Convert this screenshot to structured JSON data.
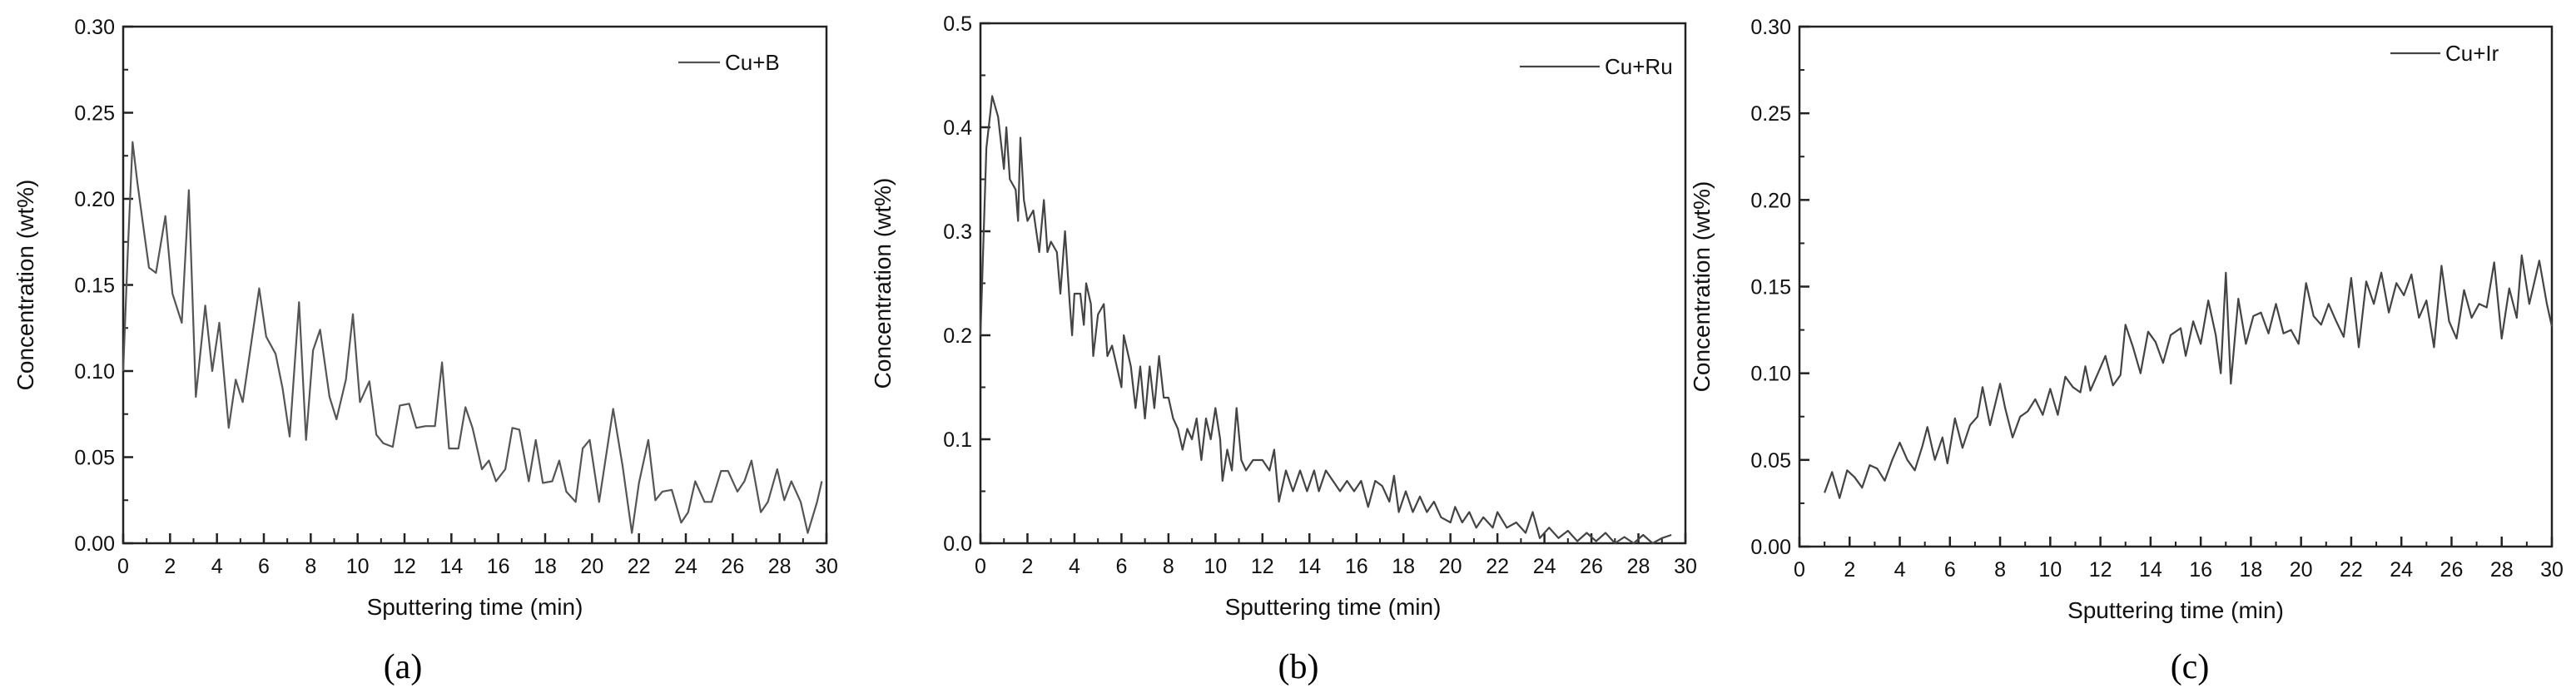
{
  "chart_data": [
    {
      "type": "line",
      "panel_caption": "(a)",
      "xlabel": "Sputtering time (min)",
      "ylabel": "Concentration (wt%)",
      "xlim": [
        0,
        30
      ],
      "ylim": [
        0,
        0.3
      ],
      "xtick_labels": [
        "0",
        "2",
        "4",
        "6",
        "8",
        "10",
        "12",
        "14",
        "16",
        "18",
        "20",
        "22",
        "24",
        "26",
        "28",
        "30"
      ],
      "ytick_labels": [
        "0.00",
        "0.05",
        "0.10",
        "0.15",
        "0.20",
        "0.25",
        "0.30"
      ],
      "grid": false,
      "legend_position": "top-right",
      "line_color": "#555555",
      "series": [
        {
          "name": "Cu+B",
          "x": [
            0,
            0.2,
            0.4,
            0.6,
            0.9,
            1.1,
            1.4,
            1.8,
            2.1,
            2.5,
            2.8,
            3.1,
            3.5,
            3.8,
            4.1,
            4.5,
            4.8,
            5.1,
            5.8,
            6.1,
            6.5,
            6.8,
            7.1,
            7.5,
            7.8,
            8.1,
            8.4,
            8.8,
            9.1,
            9.5,
            9.8,
            10.1,
            10.5,
            10.8,
            11.1,
            11.5,
            11.8,
            12.2,
            12.5,
            12.9,
            13.3,
            13.6,
            13.9,
            14.3,
            14.6,
            14.9,
            15.3,
            15.6,
            15.9,
            16.3,
            16.6,
            16.9,
            17.3,
            17.6,
            17.9,
            18.3,
            18.6,
            18.9,
            19.3,
            19.6,
            19.9,
            20.3,
            20.9,
            21.3,
            21.7,
            22.0,
            22.4,
            22.7,
            23.0,
            23.4,
            23.8,
            24.1,
            24.4,
            24.8,
            25.1,
            25.5,
            25.8,
            26.2,
            26.5,
            26.8,
            27.2,
            27.5,
            27.9,
            28.2,
            28.5,
            28.9,
            29.2,
            29.6,
            29.8
          ],
          "y": [
            0.1,
            0.17,
            0.233,
            0.21,
            0.18,
            0.16,
            0.157,
            0.19,
            0.145,
            0.128,
            0.205,
            0.085,
            0.138,
            0.1,
            0.128,
            0.067,
            0.095,
            0.082,
            0.148,
            0.12,
            0.11,
            0.09,
            0.062,
            0.14,
            0.06,
            0.112,
            0.124,
            0.085,
            0.072,
            0.095,
            0.133,
            0.082,
            0.094,
            0.063,
            0.058,
            0.056,
            0.08,
            0.081,
            0.067,
            0.068,
            0.068,
            0.105,
            0.055,
            0.055,
            0.079,
            0.067,
            0.043,
            0.048,
            0.036,
            0.043,
            0.067,
            0.066,
            0.036,
            0.06,
            0.035,
            0.036,
            0.048,
            0.03,
            0.024,
            0.055,
            0.06,
            0.024,
            0.078,
            0.045,
            0.006,
            0.035,
            0.06,
            0.025,
            0.03,
            0.031,
            0.012,
            0.018,
            0.036,
            0.024,
            0.024,
            0.042,
            0.042,
            0.03,
            0.036,
            0.048,
            0.018,
            0.024,
            0.043,
            0.025,
            0.036,
            0.024,
            0.006,
            0.024,
            0.036
          ]
        }
      ]
    },
    {
      "type": "line",
      "panel_caption": "(b)",
      "xlabel": "Sputtering time (min)",
      "ylabel": "Concentration (wt%)",
      "xlim": [
        0,
        30
      ],
      "ylim": [
        0,
        0.5
      ],
      "xtick_labels": [
        "0",
        "2",
        "4",
        "6",
        "8",
        "10",
        "12",
        "14",
        "16",
        "18",
        "20",
        "22",
        "24",
        "26",
        "28",
        "30"
      ],
      "ytick_labels": [
        "0.0",
        "0.1",
        "0.2",
        "0.3",
        "0.4",
        "0.5"
      ],
      "grid": false,
      "legend_position": "top-right",
      "line_color": "#444444",
      "series": [
        {
          "name": "Cu+Ru",
          "x": [
            0,
            0.25,
            0.5,
            0.75,
            1.0,
            1.1,
            1.25,
            1.5,
            1.6,
            1.7,
            1.85,
            2.0,
            2.25,
            2.5,
            2.7,
            2.85,
            3.0,
            3.25,
            3.4,
            3.6,
            3.8,
            3.9,
            4.0,
            4.25,
            4.4,
            4.5,
            4.7,
            4.8,
            5.0,
            5.25,
            5.4,
            5.6,
            5.8,
            6.0,
            6.1,
            6.4,
            6.6,
            6.8,
            7.0,
            7.2,
            7.4,
            7.6,
            7.8,
            8.0,
            8.2,
            8.4,
            8.6,
            8.8,
            9.0,
            9.2,
            9.4,
            9.6,
            9.8,
            10.0,
            10.2,
            10.3,
            10.5,
            10.7,
            10.9,
            11.1,
            11.3,
            11.6,
            12.0,
            12.3,
            12.5,
            12.7,
            13.0,
            13.3,
            13.6,
            13.9,
            14.2,
            14.4,
            14.7,
            15.0,
            15.3,
            15.6,
            15.9,
            16.2,
            16.5,
            16.8,
            17.1,
            17.4,
            17.6,
            17.8,
            18.1,
            18.4,
            18.7,
            19.0,
            19.3,
            19.6,
            20.0,
            20.2,
            20.5,
            20.8,
            21.1,
            21.4,
            21.8,
            22.0,
            22.4,
            22.8,
            23.2,
            23.5,
            23.8,
            24.2,
            24.6,
            25.0,
            25.4,
            25.8,
            26.2,
            26.6,
            27.0,
            27.4,
            27.8,
            28.2,
            28.6,
            29.0,
            29.4
          ],
          "y": [
            0.2,
            0.38,
            0.43,
            0.41,
            0.36,
            0.4,
            0.35,
            0.34,
            0.31,
            0.39,
            0.33,
            0.31,
            0.32,
            0.28,
            0.33,
            0.28,
            0.29,
            0.28,
            0.24,
            0.3,
            0.23,
            0.2,
            0.24,
            0.24,
            0.21,
            0.25,
            0.23,
            0.18,
            0.22,
            0.23,
            0.18,
            0.19,
            0.17,
            0.15,
            0.2,
            0.17,
            0.13,
            0.17,
            0.12,
            0.17,
            0.13,
            0.18,
            0.14,
            0.14,
            0.12,
            0.11,
            0.09,
            0.11,
            0.1,
            0.12,
            0.08,
            0.12,
            0.1,
            0.13,
            0.1,
            0.06,
            0.09,
            0.07,
            0.13,
            0.08,
            0.07,
            0.08,
            0.08,
            0.07,
            0.09,
            0.04,
            0.07,
            0.05,
            0.07,
            0.05,
            0.07,
            0.05,
            0.07,
            0.06,
            0.05,
            0.06,
            0.05,
            0.06,
            0.035,
            0.06,
            0.055,
            0.04,
            0.065,
            0.03,
            0.05,
            0.03,
            0.045,
            0.03,
            0.04,
            0.025,
            0.02,
            0.035,
            0.02,
            0.03,
            0.015,
            0.025,
            0.015,
            0.03,
            0.015,
            0.02,
            0.01,
            0.03,
            0.005,
            0.015,
            0.005,
            0.012,
            0.002,
            0.01,
            0.002,
            0.01,
            0.0,
            0.006,
            0.0,
            0.008,
            0.0,
            0.005,
            0.008
          ]
        }
      ]
    },
    {
      "type": "line",
      "panel_caption": "(c)",
      "xlabel": "Sputtering time (min)",
      "ylabel": "Concentration (wt%)",
      "xlim": [
        0,
        30
      ],
      "ylim": [
        0,
        0.3
      ],
      "xtick_labels": [
        "0",
        "2",
        "4",
        "6",
        "8",
        "10",
        "12",
        "14",
        "16",
        "18",
        "20",
        "22",
        "24",
        "26",
        "28",
        "30"
      ],
      "ytick_labels": [
        "0.00",
        "0.05",
        "0.10",
        "0.15",
        "0.20",
        "0.25",
        "0.30"
      ],
      "grid": false,
      "legend_position": "top-right",
      "line_color": "#444444",
      "series": [
        {
          "name": "Cu+Ir",
          "x": [
            1.0,
            1.3,
            1.6,
            1.9,
            2.2,
            2.5,
            2.8,
            3.1,
            3.4,
            3.7,
            4.0,
            4.3,
            4.6,
            4.9,
            5.1,
            5.4,
            5.7,
            5.9,
            6.2,
            6.5,
            6.8,
            7.1,
            7.3,
            7.6,
            8.0,
            8.2,
            8.5,
            8.8,
            9.1,
            9.4,
            9.7,
            10.0,
            10.3,
            10.6,
            10.9,
            11.2,
            11.4,
            11.6,
            11.9,
            12.2,
            12.5,
            12.8,
            13.0,
            13.3,
            13.6,
            13.9,
            14.2,
            14.5,
            14.8,
            15.2,
            15.4,
            15.7,
            16.0,
            16.3,
            16.6,
            16.8,
            17.0,
            17.2,
            17.5,
            17.8,
            18.1,
            18.4,
            18.7,
            19.0,
            19.3,
            19.6,
            19.9,
            20.2,
            20.5,
            20.8,
            21.1,
            21.4,
            21.7,
            22.0,
            22.3,
            22.6,
            22.9,
            23.2,
            23.5,
            23.8,
            24.1,
            24.4,
            24.7,
            25.0,
            25.3,
            25.6,
            25.9,
            26.2,
            26.5,
            26.8,
            27.1,
            27.4,
            27.7,
            28.0,
            28.3,
            28.6,
            28.8,
            29.1,
            29.5,
            29.8,
            30.0
          ],
          "y": [
            0.031,
            0.043,
            0.028,
            0.044,
            0.04,
            0.034,
            0.047,
            0.045,
            0.038,
            0.05,
            0.06,
            0.05,
            0.044,
            0.058,
            0.069,
            0.05,
            0.063,
            0.048,
            0.074,
            0.057,
            0.07,
            0.075,
            0.092,
            0.07,
            0.094,
            0.08,
            0.063,
            0.075,
            0.078,
            0.085,
            0.076,
            0.091,
            0.076,
            0.098,
            0.092,
            0.089,
            0.104,
            0.09,
            0.1,
            0.11,
            0.093,
            0.099,
            0.128,
            0.115,
            0.1,
            0.124,
            0.118,
            0.106,
            0.122,
            0.126,
            0.11,
            0.13,
            0.117,
            0.142,
            0.122,
            0.1,
            0.158,
            0.094,
            0.143,
            0.117,
            0.133,
            0.135,
            0.123,
            0.14,
            0.123,
            0.125,
            0.117,
            0.152,
            0.133,
            0.128,
            0.14,
            0.13,
            0.121,
            0.155,
            0.115,
            0.153,
            0.14,
            0.158,
            0.135,
            0.152,
            0.145,
            0.157,
            0.132,
            0.142,
            0.115,
            0.162,
            0.13,
            0.12,
            0.148,
            0.132,
            0.14,
            0.138,
            0.164,
            0.12,
            0.149,
            0.132,
            0.168,
            0.14,
            0.165,
            0.14,
            0.127
          ]
        }
      ]
    }
  ]
}
